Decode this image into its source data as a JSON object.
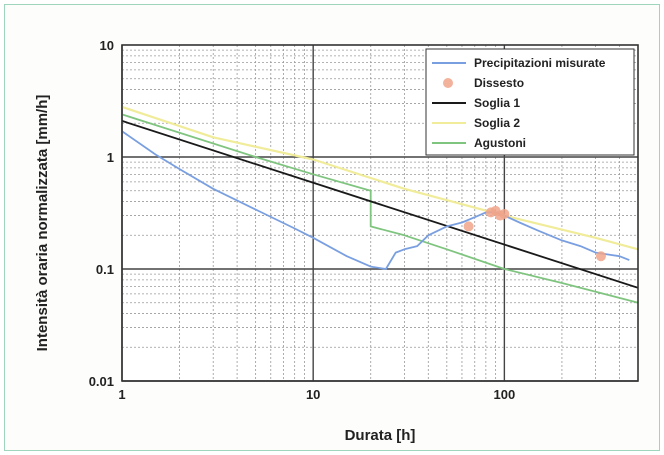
{
  "chart_data": {
    "type": "line",
    "xlabel": "Durata [h]",
    "ylabel": "Intensità oraria normalizzata [mm/h]",
    "x_scale": "log",
    "y_scale": "log",
    "xlim": [
      1,
      500
    ],
    "ylim": [
      0.01,
      10
    ],
    "x_ticks": [
      {
        "value": 1,
        "label": "1"
      },
      {
        "value": 10,
        "label": "10"
      },
      {
        "value": 100,
        "label": "100"
      }
    ],
    "y_ticks": [
      {
        "value": 10,
        "label": "10"
      },
      {
        "value": 1,
        "label": "1"
      },
      {
        "value": 0.1,
        "label": "0.1"
      },
      {
        "value": 0.01,
        "label": "0.01"
      }
    ],
    "grid": true,
    "legend_position": "top-right",
    "series": [
      {
        "name": "Precipitazioni misurate",
        "kind": "line",
        "color": "#7a9fe0",
        "x": [
          1,
          1.5,
          2,
          3,
          5,
          8,
          10,
          15,
          20,
          24,
          27,
          30,
          35,
          40,
          50,
          60,
          70,
          80,
          90,
          100,
          120,
          150,
          200,
          250,
          300,
          400,
          450
        ],
        "y": [
          1.7,
          1.05,
          0.78,
          0.52,
          0.34,
          0.23,
          0.19,
          0.13,
          0.105,
          0.1,
          0.14,
          0.15,
          0.16,
          0.2,
          0.24,
          0.26,
          0.29,
          0.32,
          0.32,
          0.3,
          0.26,
          0.22,
          0.18,
          0.16,
          0.14,
          0.13,
          0.12
        ]
      },
      {
        "name": "Dissesto",
        "kind": "scatter",
        "color": "#f0a58a",
        "x": [
          65,
          85,
          90,
          95,
          100,
          320
        ],
        "y": [
          0.24,
          0.32,
          0.33,
          0.3,
          0.31,
          0.13
        ]
      },
      {
        "name": "Soglia 1",
        "kind": "line",
        "color": "#1a1a1a",
        "x": [
          1,
          500
        ],
        "y": [
          2.1,
          0.068
        ]
      },
      {
        "name": "Soglia 2",
        "kind": "line",
        "color": "#f0ec9a",
        "x": [
          1,
          3,
          10,
          30,
          100,
          300,
          500
        ],
        "y": [
          2.8,
          1.5,
          0.95,
          0.52,
          0.3,
          0.19,
          0.15
        ]
      },
      {
        "name": "Agustoni",
        "kind": "line",
        "color": "#7fc47f",
        "x": [
          1,
          5,
          10,
          20,
          20,
          30,
          50,
          100,
          200,
          500
        ],
        "y": [
          2.4,
          1.0,
          0.7,
          0.5,
          0.24,
          0.2,
          0.15,
          0.1,
          0.075,
          0.05
        ]
      }
    ]
  }
}
